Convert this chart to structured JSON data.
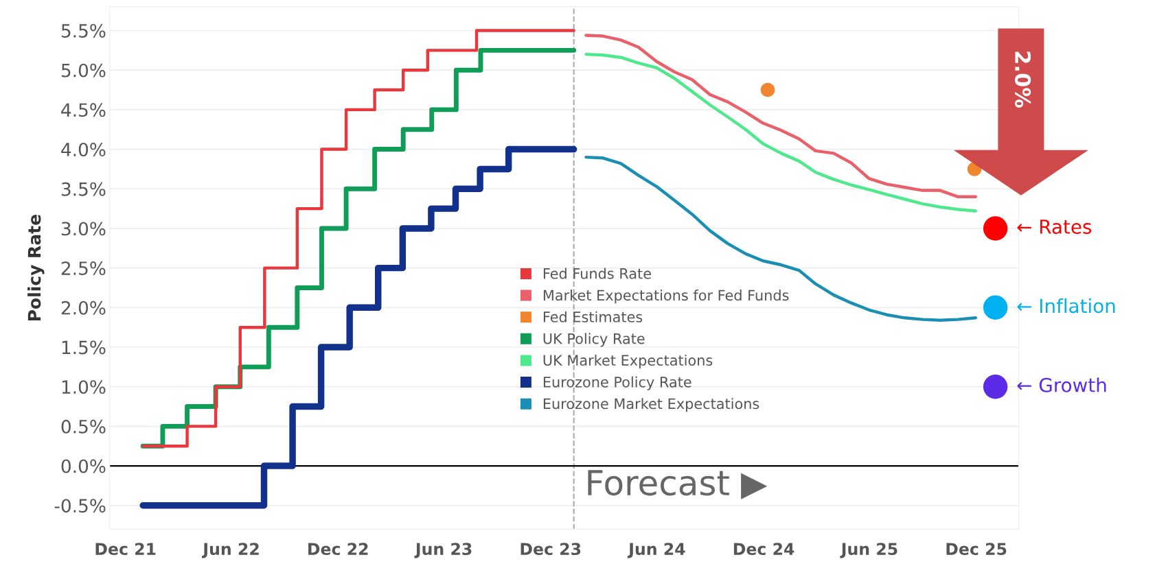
{
  "chart_data": {
    "type": "line",
    "ylabel": "Policy Rate",
    "xlim": [
      "2021-11-04",
      "2026-02-12"
    ],
    "ylim": [
      -0.8,
      5.8
    ],
    "xticks": [
      {
        "value": "2021-12-01",
        "label": "Dec 21"
      },
      {
        "value": "2022-06-01",
        "label": "Jun 22"
      },
      {
        "value": "2022-12-01",
        "label": "Dec 22"
      },
      {
        "value": "2023-06-01",
        "label": "Jun 23"
      },
      {
        "value": "2023-12-01",
        "label": "Dec 23"
      },
      {
        "value": "2024-06-01",
        "label": "Jun 24"
      },
      {
        "value": "2024-12-01",
        "label": "Dec 24"
      },
      {
        "value": "2025-06-01",
        "label": "Jun 25"
      },
      {
        "value": "2025-12-01",
        "label": "Dec 25"
      }
    ],
    "yticks": [
      {
        "value": -0.5,
        "label": "-0.5%"
      },
      {
        "value": 0,
        "label": "0.0%"
      },
      {
        "value": 0.5,
        "label": "0.5%"
      },
      {
        "value": 1.0,
        "label": "1.0%"
      },
      {
        "value": 1.5,
        "label": "1.5%"
      },
      {
        "value": 2.0,
        "label": "2.0%"
      },
      {
        "value": 2.5,
        "label": "2.5%"
      },
      {
        "value": 3.0,
        "label": "3.0%"
      },
      {
        "value": 3.5,
        "label": "3.5%"
      },
      {
        "value": 4.0,
        "label": "4.0%"
      },
      {
        "value": 4.5,
        "label": "4.5%"
      },
      {
        "value": 5.0,
        "label": "5.0%"
      },
      {
        "value": 5.5,
        "label": "5.5%"
      }
    ],
    "grid": "y",
    "legend": "bottom",
    "ref_lines": [
      {
        "axis": "x",
        "value": "2024-01-10",
        "label": "Forecast ▶",
        "color": "#aaaaaa",
        "line_style": "dashed"
      },
      {
        "axis": "y",
        "value": 0,
        "color": "#000000",
        "line_style": "solid"
      }
    ],
    "annotations": [
      "2.0%"
    ],
    "series": [
      {
        "name": "Fed Funds Rate",
        "type": "step",
        "color": "#e8383d",
        "x": [
          "2021-12-31",
          "2022-03-17",
          "2022-05-05",
          "2022-06-16",
          "2022-07-28",
          "2022-09-22",
          "2022-11-03",
          "2022-12-15",
          "2023-02-02",
          "2023-03-23",
          "2023-05-04",
          "2023-07-27",
          "2024-01-10"
        ],
        "values": [
          0.25,
          0.5,
          1.0,
          1.75,
          2.5,
          3.25,
          4.0,
          4.5,
          4.75,
          5.0,
          5.25,
          5.5,
          5.5
        ]
      },
      {
        "name": "Market Expectations for Fed Funds",
        "color": "#e8606a",
        "x": [
          "2024-01-31",
          "2024-02-29",
          "2024-03-31",
          "2024-04-30",
          "2024-05-31",
          "2024-06-30",
          "2024-07-31",
          "2024-08-31",
          "2024-09-30",
          "2024-10-31",
          "2024-11-30",
          "2024-12-31",
          "2025-01-31",
          "2025-02-28",
          "2025-03-31",
          "2025-04-30",
          "2025-05-31",
          "2025-06-30",
          "2025-07-31",
          "2025-08-31",
          "2025-09-30",
          "2025-10-31",
          "2025-11-30"
        ],
        "values": [
          5.44,
          5.43,
          5.38,
          5.29,
          5.11,
          4.98,
          4.88,
          4.69,
          4.6,
          4.47,
          4.33,
          4.24,
          4.13,
          3.98,
          3.95,
          3.83,
          3.63,
          3.56,
          3.52,
          3.48,
          3.48,
          3.4,
          3.4
        ]
      },
      {
        "name": "Fed Estimates",
        "type": "scatter",
        "color": "#f28530",
        "x": [
          "2024-12-08",
          "2025-11-28"
        ],
        "values": [
          4.75,
          3.75
        ]
      },
      {
        "name": "UK Policy Rate",
        "type": "step",
        "color": "#0f9d58",
        "x": [
          "2021-12-31",
          "2022-02-03",
          "2022-03-17",
          "2022-05-05",
          "2022-06-16",
          "2022-08-04",
          "2022-09-22",
          "2022-11-03",
          "2022-12-15",
          "2023-02-02",
          "2023-03-23",
          "2023-05-11",
          "2023-06-22",
          "2023-08-03",
          "2024-01-10"
        ],
        "values": [
          0.25,
          0.5,
          0.75,
          1.0,
          1.25,
          1.75,
          2.25,
          3.0,
          3.5,
          4.0,
          4.25,
          4.5,
          5.0,
          5.25,
          5.25
        ]
      },
      {
        "name": "UK Market Expectations",
        "color": "#4ee88d",
        "x": [
          "2024-01-31",
          "2024-02-29",
          "2024-03-31",
          "2024-04-30",
          "2024-05-31",
          "2024-06-30",
          "2024-07-31",
          "2024-08-31",
          "2024-09-30",
          "2024-10-31",
          "2024-11-30",
          "2024-12-31",
          "2025-01-31",
          "2025-02-28",
          "2025-03-31",
          "2025-04-30",
          "2025-05-31",
          "2025-06-30",
          "2025-07-31",
          "2025-08-31",
          "2025-09-30",
          "2025-10-31",
          "2025-11-30"
        ],
        "values": [
          5.2,
          5.19,
          5.16,
          5.09,
          5.03,
          4.9,
          4.73,
          4.56,
          4.41,
          4.25,
          4.07,
          3.95,
          3.85,
          3.71,
          3.62,
          3.55,
          3.49,
          3.43,
          3.37,
          3.31,
          3.27,
          3.24,
          3.22
        ]
      },
      {
        "name": "Eurozone Policy Rate",
        "type": "step",
        "color": "#12318b",
        "x": [
          "2021-12-31",
          "2022-07-27",
          "2022-09-14",
          "2022-11-02",
          "2022-12-21",
          "2023-02-08",
          "2023-03-22",
          "2023-05-10",
          "2023-06-21",
          "2023-08-02",
          "2023-09-20",
          "2024-01-10"
        ],
        "values": [
          -0.5,
          0.0,
          0.75,
          1.5,
          2.0,
          2.5,
          3.0,
          3.25,
          3.5,
          3.75,
          4.0,
          4.0
        ]
      },
      {
        "name": "Eurozone Market Expectations",
        "color": "#1b8fb3",
        "x": [
          "2024-01-31",
          "2024-02-29",
          "2024-03-31",
          "2024-04-30",
          "2024-05-31",
          "2024-06-30",
          "2024-07-31",
          "2024-08-31",
          "2024-09-30",
          "2024-10-31",
          "2024-11-30",
          "2024-12-31",
          "2025-01-31",
          "2025-02-28",
          "2025-03-31",
          "2025-04-30",
          "2025-05-31",
          "2025-06-30",
          "2025-07-31",
          "2025-08-31",
          "2025-09-30",
          "2025-10-31",
          "2025-11-30"
        ],
        "values": [
          3.9,
          3.89,
          3.82,
          3.67,
          3.53,
          3.36,
          3.18,
          2.97,
          2.81,
          2.68,
          2.59,
          2.54,
          2.47,
          2.3,
          2.16,
          2.06,
          1.97,
          1.91,
          1.87,
          1.85,
          1.84,
          1.85,
          1.87
        ]
      },
      {
        "type": "scatter",
        "colors": [
          "#ff0000",
          "#00b0f0",
          "#5b2be8"
        ],
        "x": [
          "2026-01-03",
          "2026-01-03",
          "2026-01-03"
        ],
        "values": [
          3.0,
          2.0,
          1.0
        ],
        "value_labels": [
          "← Rates",
          "← Inflation",
          "← Growth"
        ]
      }
    ]
  }
}
